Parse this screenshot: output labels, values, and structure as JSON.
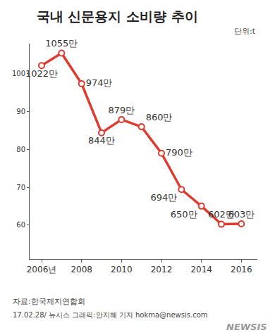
{
  "chart_data": {
    "type": "line",
    "title": "국내 신문용지 소비량 추이",
    "subtitle": "단위:t",
    "source": "자료:한국제지연합회",
    "credit": "17.02.28/ 뉴시스 그래픽:안지혜 기자 hokma@newsis.com",
    "watermark": "NEWSIS",
    "x": [
      2006,
      2007,
      2008,
      2009,
      2010,
      2011,
      2012,
      2013,
      2014,
      2015,
      2016
    ],
    "values": [
      102.2,
      105.5,
      97.4,
      84.4,
      87.9,
      86.0,
      79.0,
      69.4,
      65.0,
      60.2,
      60.3
    ],
    "value_labels": [
      "1022만",
      "1055만",
      "974만",
      "844만",
      "879만",
      "860만",
      "790만",
      "694만",
      "650만",
      "602만",
      "603만"
    ],
    "xlim": [
      2005.4,
      2016.8
    ],
    "xticks": [
      {
        "value": 2006,
        "label": "2006년"
      },
      2008,
      2010,
      2012,
      2014,
      2016
    ],
    "ylim": [
      51,
      108
    ],
    "yticks": [
      60,
      70,
      80,
      90,
      100
    ],
    "color": "#e03a2f",
    "marker": "circle",
    "data_labels": true,
    "grid": false
  }
}
